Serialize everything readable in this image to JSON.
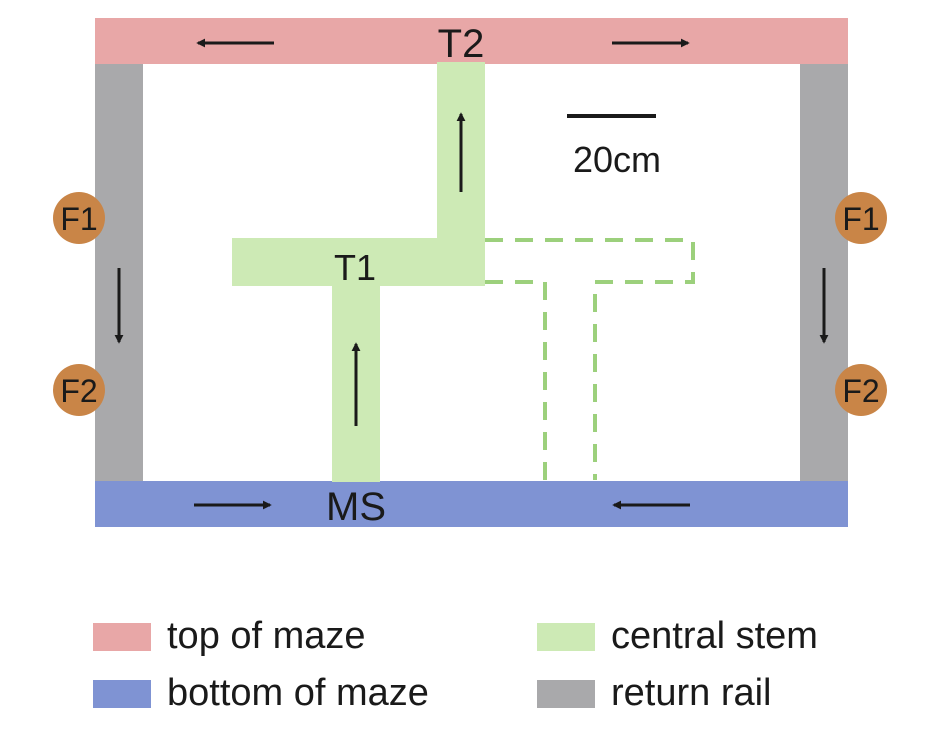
{
  "maze": {
    "top_label": "T2",
    "bottom_label": "MS",
    "junction_label": "T1",
    "scale_label": "20cm",
    "feeders": {
      "left": [
        "F1",
        "F2"
      ],
      "right": [
        "F1",
        "F2"
      ]
    }
  },
  "colors": {
    "top": "#e8a7a7",
    "bottom": "#7f93d3",
    "stem": "#cdeab5",
    "rail": "#a9a9ab",
    "feeder": "#c98547",
    "dashed": "#9cd07c",
    "arrow": "#1a1a1a"
  },
  "legend": [
    {
      "label": "top of maze",
      "color": "#e8a7a7"
    },
    {
      "label": "central stem",
      "color": "#cdeab5"
    },
    {
      "label": "bottom of maze",
      "color": "#7f93d3"
    },
    {
      "label": "return rail",
      "color": "#a9a9ab"
    }
  ]
}
